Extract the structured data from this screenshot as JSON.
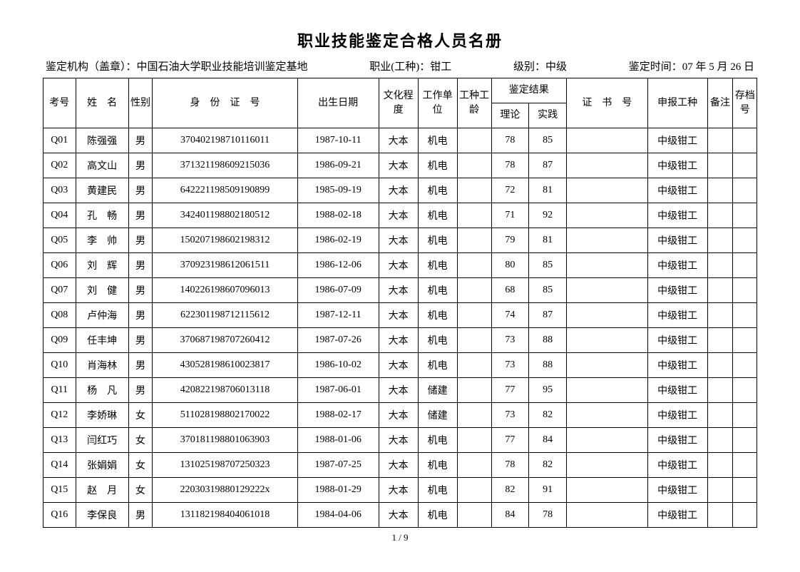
{
  "title": "职业技能鉴定合格人员名册",
  "meta": {
    "org_label": "鉴定机构（盖章）：",
    "org_value": "中国石油大学职业技能培训鉴定基地",
    "occ_label": "职业(工种)：",
    "occ_value": "钳工",
    "level_label": "级别：",
    "level_value": "中级",
    "date_label": "鉴定时间：",
    "date_value": "07 年 5 月 26 日"
  },
  "headers": {
    "exam_no": "考号",
    "name": "姓　名",
    "sex": "性别",
    "id_no": "身　份　证　号",
    "birth": "出生日期",
    "edu": "文化程度",
    "unit": "工作单位",
    "work_age": "工种工龄",
    "result": "鉴定结果",
    "theory": "理论",
    "practice": "实践",
    "cert_no": "证　书　号",
    "apply": "申报工种",
    "note": "备注",
    "archive": "存档号"
  },
  "rows": [
    {
      "no": "Q01",
      "name": "陈强强",
      "sex": "男",
      "id": "370402198710116011",
      "birth": "1987-10-11",
      "edu": "大本",
      "unit": "机电",
      "age": "",
      "theory": "78",
      "prac": "85",
      "cert": "",
      "apply": "中级钳工",
      "note": "",
      "arch": ""
    },
    {
      "no": "Q02",
      "name": "高文山",
      "sex": "男",
      "id": "371321198609215036",
      "birth": "1986-09-21",
      "edu": "大本",
      "unit": "机电",
      "age": "",
      "theory": "78",
      "prac": "87",
      "cert": "",
      "apply": "中级钳工",
      "note": "",
      "arch": ""
    },
    {
      "no": "Q03",
      "name": "黄建民",
      "sex": "男",
      "id": "642221198509190899",
      "birth": "1985-09-19",
      "edu": "大本",
      "unit": "机电",
      "age": "",
      "theory": "72",
      "prac": "81",
      "cert": "",
      "apply": "中级钳工",
      "note": "",
      "arch": ""
    },
    {
      "no": "Q04",
      "name": "孔　畅",
      "sex": "男",
      "id": "342401198802180512",
      "birth": "1988-02-18",
      "edu": "大本",
      "unit": "机电",
      "age": "",
      "theory": "71",
      "prac": "92",
      "cert": "",
      "apply": "中级钳工",
      "note": "",
      "arch": ""
    },
    {
      "no": "Q05",
      "name": "李　帅",
      "sex": "男",
      "id": "150207198602198312",
      "birth": "1986-02-19",
      "edu": "大本",
      "unit": "机电",
      "age": "",
      "theory": "79",
      "prac": "81",
      "cert": "",
      "apply": "中级钳工",
      "note": "",
      "arch": ""
    },
    {
      "no": "Q06",
      "name": "刘　辉",
      "sex": "男",
      "id": "370923198612061511",
      "birth": "1986-12-06",
      "edu": "大本",
      "unit": "机电",
      "age": "",
      "theory": "80",
      "prac": "85",
      "cert": "",
      "apply": "中级钳工",
      "note": "",
      "arch": ""
    },
    {
      "no": "Q07",
      "name": "刘　健",
      "sex": "男",
      "id": "140226198607096013",
      "birth": "1986-07-09",
      "edu": "大本",
      "unit": "机电",
      "age": "",
      "theory": "68",
      "prac": "85",
      "cert": "",
      "apply": "中级钳工",
      "note": "",
      "arch": ""
    },
    {
      "no": "Q08",
      "name": "卢仲海",
      "sex": "男",
      "id": "622301198712115612",
      "birth": "1987-12-11",
      "edu": "大本",
      "unit": "机电",
      "age": "",
      "theory": "74",
      "prac": "87",
      "cert": "",
      "apply": "中级钳工",
      "note": "",
      "arch": ""
    },
    {
      "no": "Q09",
      "name": "任丰坤",
      "sex": "男",
      "id": "370687198707260412",
      "birth": "1987-07-26",
      "edu": "大本",
      "unit": "机电",
      "age": "",
      "theory": "73",
      "prac": "88",
      "cert": "",
      "apply": "中级钳工",
      "note": "",
      "arch": ""
    },
    {
      "no": "Q10",
      "name": "肖海林",
      "sex": "男",
      "id": "430528198610023817",
      "birth": "1986-10-02",
      "edu": "大本",
      "unit": "机电",
      "age": "",
      "theory": "73",
      "prac": "88",
      "cert": "",
      "apply": "中级钳工",
      "note": "",
      "arch": ""
    },
    {
      "no": "Q11",
      "name": "杨　凡",
      "sex": "男",
      "id": "420822198706013118",
      "birth": "1987-06-01",
      "edu": "大本",
      "unit": "储建",
      "age": "",
      "theory": "77",
      "prac": "95",
      "cert": "",
      "apply": "中级钳工",
      "note": "",
      "arch": ""
    },
    {
      "no": "Q12",
      "name": "李娇琳",
      "sex": "女",
      "id": "511028198802170022",
      "birth": "1988-02-17",
      "edu": "大本",
      "unit": "储建",
      "age": "",
      "theory": "73",
      "prac": "82",
      "cert": "",
      "apply": "中级钳工",
      "note": "",
      "arch": ""
    },
    {
      "no": "Q13",
      "name": "闫红巧",
      "sex": "女",
      "id": "370181198801063903",
      "birth": "1988-01-06",
      "edu": "大本",
      "unit": "机电",
      "age": "",
      "theory": "77",
      "prac": "84",
      "cert": "",
      "apply": "中级钳工",
      "note": "",
      "arch": ""
    },
    {
      "no": "Q14",
      "name": "张娟娟",
      "sex": "女",
      "id": "131025198707250323",
      "birth": "1987-07-25",
      "edu": "大本",
      "unit": "机电",
      "age": "",
      "theory": "78",
      "prac": "82",
      "cert": "",
      "apply": "中级钳工",
      "note": "",
      "arch": ""
    },
    {
      "no": "Q15",
      "name": "赵　月",
      "sex": "女",
      "id": "22030319880129222x",
      "birth": "1988-01-29",
      "edu": "大本",
      "unit": "机电",
      "age": "",
      "theory": "82",
      "prac": "91",
      "cert": "",
      "apply": "中级钳工",
      "note": "",
      "arch": ""
    },
    {
      "no": "Q16",
      "name": "李保良",
      "sex": "男",
      "id": "131182198404061018",
      "birth": "1984-04-06",
      "edu": "大本",
      "unit": "机电",
      "age": "",
      "theory": "84",
      "prac": "78",
      "cert": "",
      "apply": "中级钳工",
      "note": "",
      "arch": ""
    }
  ],
  "page": "1 / 9"
}
